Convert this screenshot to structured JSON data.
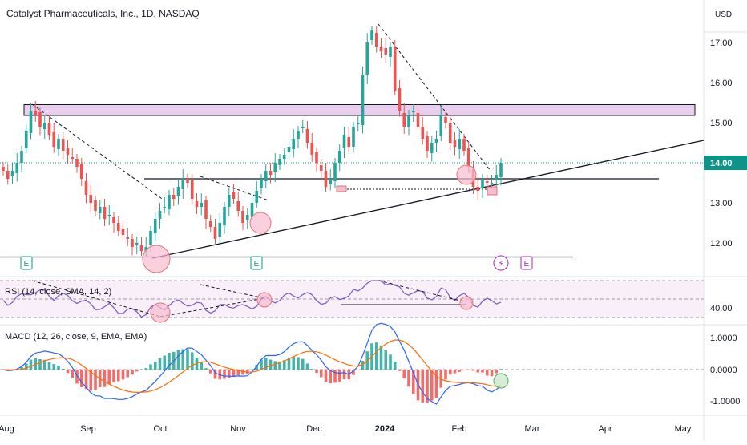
{
  "header": {
    "title": "Catalyst Pharmaceuticals, Inc., 1D, NASDAQ",
    "currency": "USD"
  },
  "colors": {
    "up": "#26a69a",
    "down": "#ef5350",
    "price_tag": "#0d9488",
    "rsi_line": "#7e57c2",
    "band": "#e1bee7",
    "macd": "#2962ff",
    "signal": "#ff6d00"
  },
  "chart_data": [
    {
      "type": "candlestick",
      "title": "Catalyst Pharmaceuticals, Inc., 1D, NASDAQ",
      "x_ticks": [
        "Aug",
        "Sep",
        "Oct",
        "Nov",
        "Dec",
        "2024",
        "Feb",
        "Mar",
        "Apr",
        "May"
      ],
      "y_ticks": [
        "17.00",
        "16.00",
        "15.00",
        "14.00",
        "13.00",
        "12.00"
      ],
      "y_range": [
        11.2,
        18.0
      ],
      "last_price": "14.00",
      "resistance_zone": [
        15.18,
        15.45
      ],
      "horizontal_levels": [
        13.6,
        11.65
      ],
      "closes": [
        13.8,
        13.6,
        13.8,
        14.0,
        14.3,
        14.8,
        15.3,
        15.2,
        14.9,
        15.0,
        14.7,
        14.4,
        14.6,
        14.3,
        14.2,
        14.1,
        13.9,
        13.6,
        13.2,
        13.0,
        12.8,
        12.9,
        12.6,
        12.7,
        12.5,
        12.3,
        12.2,
        12.1,
        11.9,
        12.0,
        11.8,
        11.9,
        12.3,
        12.6,
        12.8,
        12.9,
        13.2,
        13.1,
        13.4,
        13.6,
        13.5,
        13.1,
        12.9,
        13.0,
        12.6,
        12.4,
        12.1,
        12.5,
        12.9,
        13.2,
        13.1,
        12.8,
        12.5,
        12.7,
        13.0,
        13.3,
        13.6,
        13.8,
        13.7,
        14.0,
        14.1,
        14.2,
        14.4,
        14.6,
        14.8,
        14.9,
        14.5,
        14.2,
        14.0,
        13.8,
        13.4,
        13.6,
        14.0,
        14.3,
        14.7,
        14.4,
        14.9,
        15.0,
        16.2,
        17.0,
        17.3,
        16.9,
        16.8,
        16.7,
        16.9,
        15.8,
        15.3,
        14.9,
        15.2,
        15.3,
        14.9,
        14.6,
        14.3,
        14.5,
        14.6,
        15.2,
        15.0,
        14.5,
        14.4,
        14.6,
        14.3,
        13.9,
        13.4,
        13.3,
        13.6,
        13.5,
        13.5,
        13.7,
        14.0
      ],
      "rsi_ticks": [
        "40.00"
      ],
      "macd_ticks": [
        "1.0000",
        "0.0000",
        "-1.0000"
      ]
    }
  ],
  "labels": {
    "rsi": "RSI (14, close, SMA, 14, 2)",
    "macd": "MACD (12, 26, close, 9, EMA, EMA)"
  },
  "events": [
    "E",
    "E",
    "E"
  ]
}
